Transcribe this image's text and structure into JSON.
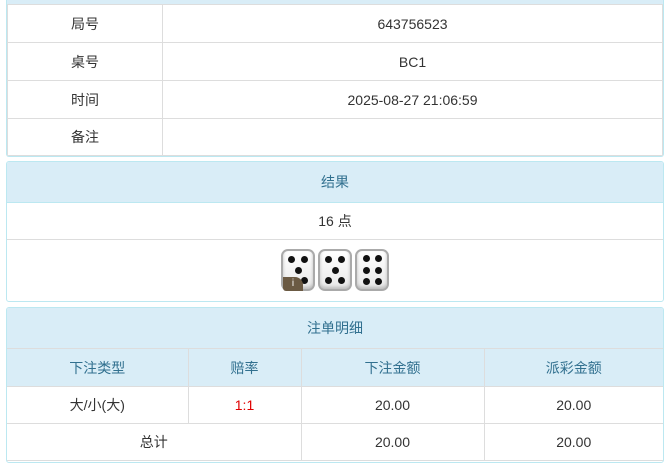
{
  "info": {
    "rows": [
      {
        "label": "局号",
        "value": "643756523"
      },
      {
        "label": "桌号",
        "value": "BC1"
      },
      {
        "label": "时间",
        "value": "2025-08-27 21:06:59"
      },
      {
        "label": "备注",
        "value": ""
      }
    ]
  },
  "result": {
    "title": "结果",
    "points": "16 点",
    "dice": [
      5,
      5,
      6
    ],
    "info_badge": "i"
  },
  "bets": {
    "title": "注单明细",
    "headers": [
      "下注类型",
      "赔率",
      "下注金额",
      "派彩金额"
    ],
    "rows": [
      {
        "type": "大/小(大)",
        "odds": "1:1",
        "amount": "20.00",
        "payout": "20.00"
      }
    ],
    "total": {
      "label": "总计",
      "amount": "20.00",
      "payout": "20.00"
    },
    "odds_color": "#e00000"
  }
}
